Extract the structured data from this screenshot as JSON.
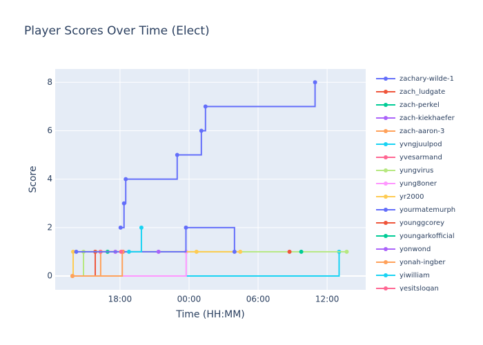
{
  "chart_data": {
    "type": "line",
    "line_shape": "hv",
    "title": "Player Scores Over Time (Elect)",
    "x_label": "Time (HH:MM)",
    "y_label": "Score",
    "xlim": [
      12.37,
      39.35
    ],
    "xticks": [
      {
        "value": 18,
        "label": "18:00"
      },
      {
        "value": 24,
        "label": "00:00"
      },
      {
        "value": 30,
        "label": "06:00"
      },
      {
        "value": 36,
        "label": "12:00"
      }
    ],
    "ylim": [
      -0.57,
      8.55
    ],
    "yticks": [
      0,
      2,
      4,
      6,
      8
    ],
    "grid": true,
    "series": [
      {
        "name": "zachary-wilde-1",
        "color": "#636efa",
        "x": [
          18.05,
          18.35,
          18.5,
          22.97,
          25.07,
          25.43,
          34.95
        ],
        "values": [
          2,
          3,
          4,
          5,
          6,
          7,
          8
        ]
      },
      {
        "name": "zach_ludgate",
        "color": "#EF553B",
        "x": [
          13.87,
          15.85,
          18.25
        ],
        "values": [
          0,
          1,
          1
        ]
      },
      {
        "name": "zach-perkel",
        "color": "#00cc96",
        "x": [
          16.92
        ],
        "values": [
          1
        ]
      },
      {
        "name": "zach-kiekhaefer",
        "color": "#ab63fa",
        "x": [
          17.6
        ],
        "values": [
          1
        ]
      },
      {
        "name": "zach-aaron-3",
        "color": "#FFA15A",
        "x": [
          13.87,
          16.32
        ],
        "values": [
          0,
          1
        ]
      },
      {
        "name": "yvngjuulpod",
        "color": "#19d3f3",
        "x": [
          13.87,
          37.04
        ],
        "values": [
          0,
          1
        ]
      },
      {
        "name": "yvesarmand",
        "color": "#FF6692",
        "x": [
          16.3
        ],
        "values": [
          1
        ]
      },
      {
        "name": "yungvirus",
        "color": "#B6E880",
        "x": [
          13.87,
          14.83,
          37.7
        ],
        "values": [
          0,
          1,
          1
        ]
      },
      {
        "name": "yung8oner",
        "color": "#FF97FF",
        "x": [
          13.87,
          23.75
        ],
        "values": [
          0,
          1
        ]
      },
      {
        "name": "yr2000",
        "color": "#FECB52",
        "x": [
          13.87,
          13.93,
          24.65,
          28.45
        ],
        "values": [
          0,
          1,
          1,
          1
        ]
      },
      {
        "name": "yourmatemurph",
        "color": "#636efa",
        "x": [
          14.2,
          23.73,
          27.95
        ],
        "values": [
          1,
          2,
          1
        ]
      },
      {
        "name": "younggcorey",
        "color": "#EF553B",
        "x": [
          32.73
        ],
        "values": [
          1
        ]
      },
      {
        "name": "youngarkofficial",
        "color": "#00cc96",
        "x": [
          33.75
        ],
        "values": [
          1
        ]
      },
      {
        "name": "yonwond",
        "color": "#ab63fa",
        "x": [
          21.35
        ],
        "values": [
          1
        ]
      },
      {
        "name": "yonah-ingber",
        "color": "#FFA15A",
        "x": [
          13.87,
          18.2
        ],
        "values": [
          0,
          1
        ]
      },
      {
        "name": "yiwilliam",
        "color": "#19d3f3",
        "x": [
          18.78,
          19.86
        ],
        "values": [
          1,
          2
        ]
      },
      {
        "name": "yesitslogan",
        "color": "#FF6692",
        "x": [
          18.1
        ],
        "values": [
          1
        ]
      }
    ]
  }
}
